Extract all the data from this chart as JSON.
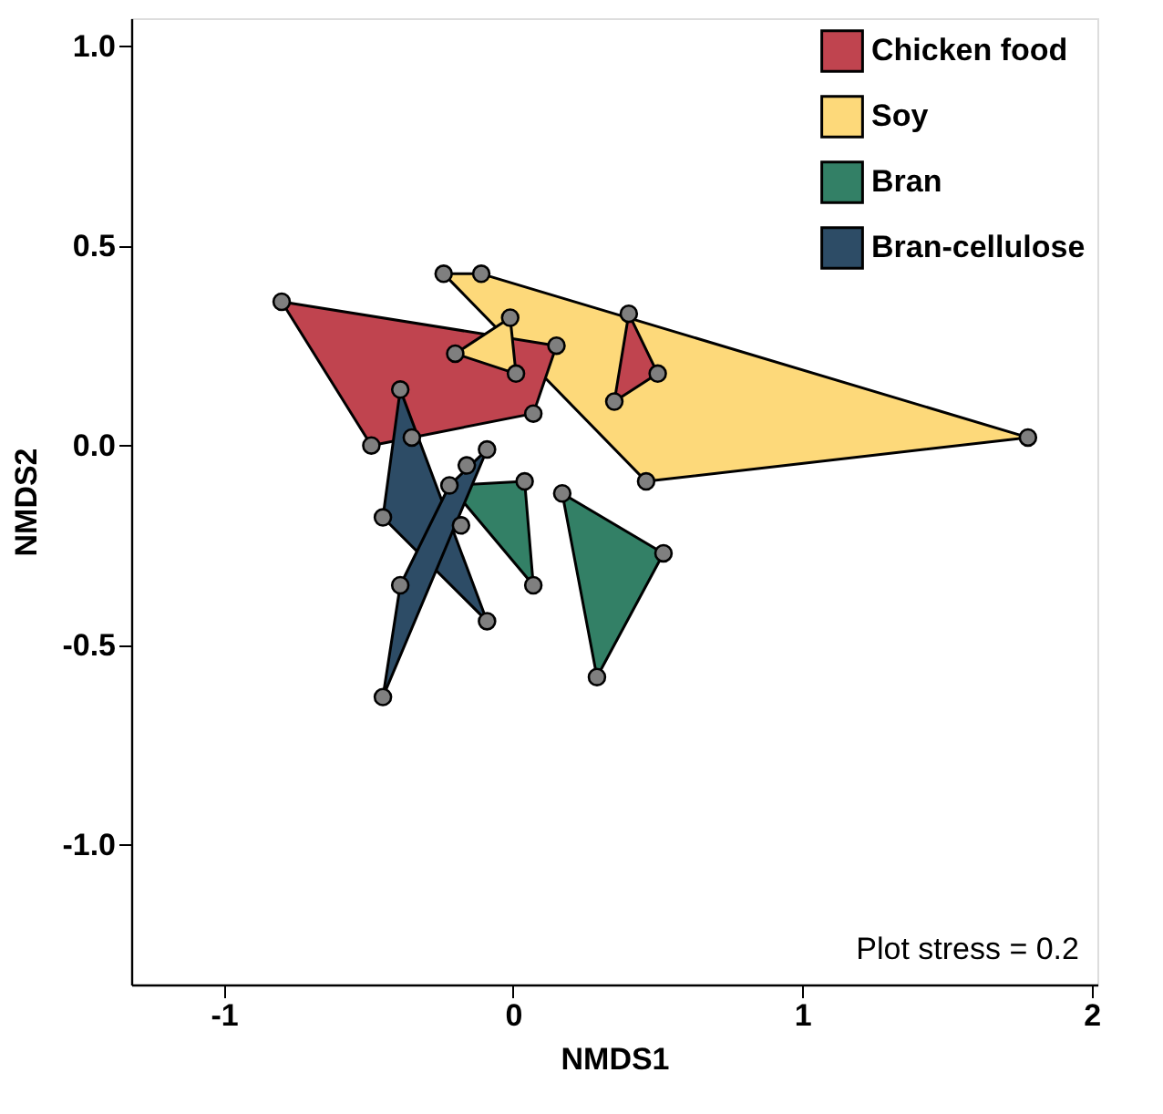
{
  "chart_data": {
    "type": "scatter",
    "xlabel": "NMDS1",
    "ylabel": "NMDS2",
    "xlim": [
      -1.32,
      2.02
    ],
    "xticks": [
      -1,
      0,
      1,
      2
    ],
    "ylim": [
      -1.35,
      1.07
    ],
    "yticks": [
      {
        "value": -1,
        "label": "-1.0"
      },
      {
        "value": -0.5,
        "label": "-0.5"
      },
      {
        "value": 0,
        "label": "0.0"
      },
      {
        "value": 0.5,
        "label": "0.5"
      },
      {
        "value": 1,
        "label": "1.0"
      }
    ],
    "grid": false,
    "legend": "top right",
    "marker": "circle",
    "annotations": [
      "Plot stress = 0.2"
    ],
    "series": [
      {
        "name": "Chicken food",
        "color": "#c0444f",
        "type": "area",
        "marker": "none",
        "x": [
          0.4,
          0.5,
          0.35
        ],
        "values": [
          0.33,
          0.18,
          0.11
        ]
      },
      {
        "name": "Soy",
        "color": "#fdd97a",
        "type": "area",
        "marker": "none",
        "x": [
          -0.24,
          -0.11,
          1.78,
          0.46
        ],
        "values": [
          0.43,
          0.43,
          0.02,
          -0.09
        ]
      },
      {
        "name": "Bran",
        "color": "#338066",
        "type": "area",
        "marker": "none",
        "x": [
          0.17,
          0.52,
          0.29
        ],
        "values": [
          -0.12,
          -0.27,
          -0.58
        ]
      },
      {
        "name": "Bran-cellulose",
        "color": "#2d4c66",
        "type": "area",
        "marker": "none",
        "x": [
          -0.39,
          -0.09,
          -0.45
        ],
        "values": [
          0.14,
          -0.44,
          -0.18
        ]
      },
      {
        "color": "#c0444f",
        "type": "area",
        "marker": "none",
        "x": [
          -0.8,
          0.15,
          0.07,
          -0.49
        ],
        "values": [
          0.36,
          0.25,
          0.08,
          0.0
        ]
      },
      {
        "color": "#fdd97a",
        "type": "area",
        "marker": "none",
        "x": [
          -0.01,
          0.01,
          -0.2
        ],
        "values": [
          0.32,
          0.18,
          0.23
        ]
      },
      {
        "color": "#2d4c66",
        "type": "area",
        "marker": "none",
        "x": [
          -0.22,
          -0.09,
          -0.45,
          -0.39
        ],
        "values": [
          -0.1,
          -0.01,
          -0.63,
          -0.35
        ]
      },
      {
        "color": "#338066",
        "type": "area",
        "marker": "none",
        "x": [
          -0.22,
          0.04,
          0.07
        ],
        "values": [
          -0.1,
          -0.09,
          -0.35
        ]
      },
      {
        "color": "#7f7f7f",
        "x": [
          -0.8,
          0.15,
          0.07,
          -0.49,
          -0.24,
          -0.11,
          1.78,
          0.46,
          0.4,
          0.5,
          0.35,
          -0.01,
          0.01,
          -0.2,
          -0.39,
          -0.09,
          -0.45,
          -0.35,
          -0.22,
          -0.09,
          -0.45,
          -0.39,
          -0.16,
          -0.18,
          0.04,
          0.07,
          0.17,
          0.52,
          0.29
        ],
        "values": [
          0.36,
          0.25,
          0.08,
          0.0,
          0.43,
          0.43,
          0.02,
          -0.09,
          0.33,
          0.18,
          0.11,
          0.32,
          0.18,
          0.23,
          0.14,
          -0.44,
          -0.18,
          0.02,
          -0.1,
          -0.01,
          -0.63,
          -0.35,
          -0.05,
          -0.2,
          -0.09,
          -0.35,
          -0.12,
          -0.27,
          -0.58
        ]
      }
    ]
  }
}
